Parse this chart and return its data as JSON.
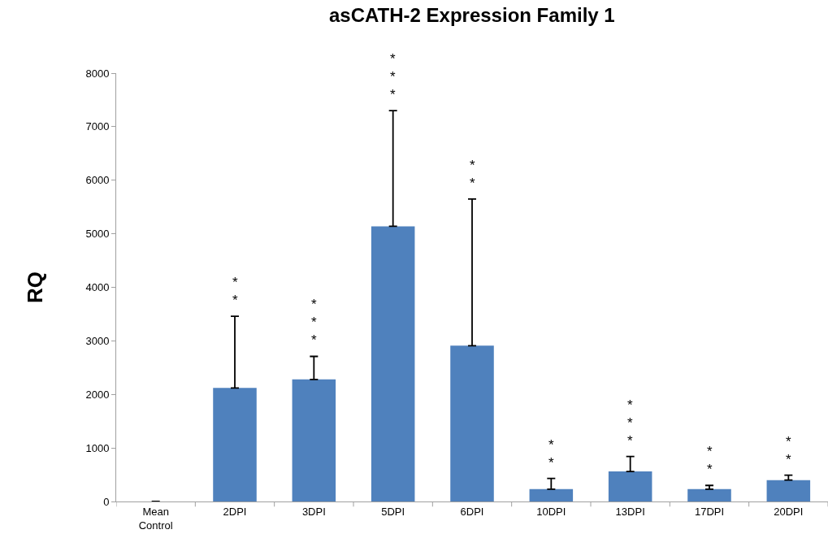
{
  "chart_data": {
    "type": "bar",
    "title": "asCATH-2 Expression Family 1",
    "ylabel": "RQ",
    "categories": [
      "Mean\nControl",
      "2DPI",
      "3DPI",
      "5DPI",
      "6DPI",
      "10DPI",
      "13DPI",
      "17DPI",
      "20DPI"
    ],
    "values": [
      0,
      2120,
      2280,
      5140,
      2910,
      230,
      560,
      230,
      400
    ],
    "errors": [
      null,
      [
        2120,
        3460
      ],
      [
        2280,
        2710
      ],
      [
        5140,
        7300
      ],
      [
        2910,
        5650
      ],
      [
        230,
        430
      ],
      [
        560,
        840
      ],
      [
        230,
        300
      ],
      [
        400,
        490
      ]
    ],
    "color": "#4f81bd",
    "ylim": [
      0,
      8000
    ],
    "yticks": [
      0,
      1000,
      2000,
      3000,
      4000,
      5000,
      6000,
      7000,
      8000
    ],
    "legend": false,
    "annotations": [
      "*\n*",
      "*\n*\n*",
      "*\n*\n*",
      "*\n*",
      "*\n*",
      "*\n*\n*",
      "*\n*",
      "*\n*"
    ]
  }
}
